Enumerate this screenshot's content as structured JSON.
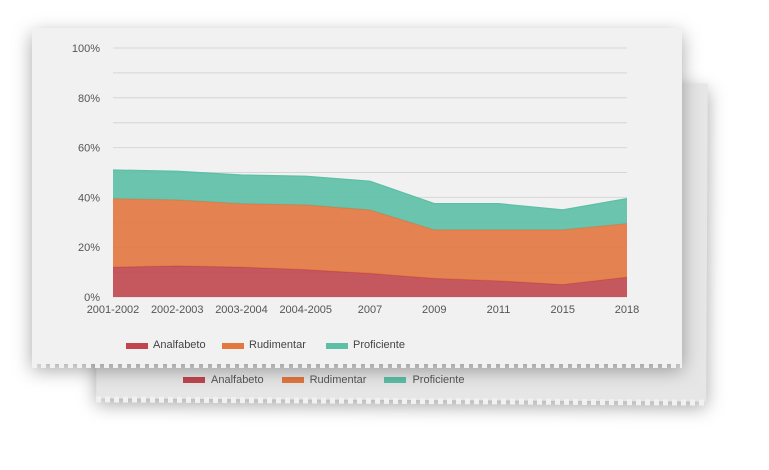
{
  "chart_data": {
    "type": "area",
    "categories": [
      "2001-2002",
      "2002-2003",
      "2003-2004",
      "2004-2005",
      "2007",
      "2009",
      "2011",
      "2015",
      "2018"
    ],
    "yticks": [
      "0%",
      "20%",
      "40%",
      "60%",
      "80%",
      "100%"
    ],
    "ylim": [
      0,
      100
    ],
    "stacked": true,
    "series": [
      {
        "name": "Analfabeto",
        "color": "#c0464e",
        "values": [
          12,
          12.5,
          12,
          11,
          9.5,
          7.5,
          6.5,
          5,
          8
        ]
      },
      {
        "name": "Rudimentar",
        "color": "#e2773f",
        "values": [
          27.5,
          26.5,
          25.5,
          26,
          25.5,
          19.5,
          20.5,
          22,
          21.5
        ]
      },
      {
        "name": "Proficiente",
        "color": "#5cbfa6",
        "values": [
          11.5,
          11.5,
          11.5,
          11.5,
          11.5,
          10.5,
          10.5,
          8,
          10
        ]
      }
    ],
    "grid": true,
    "legend_position": "bottom"
  }
}
